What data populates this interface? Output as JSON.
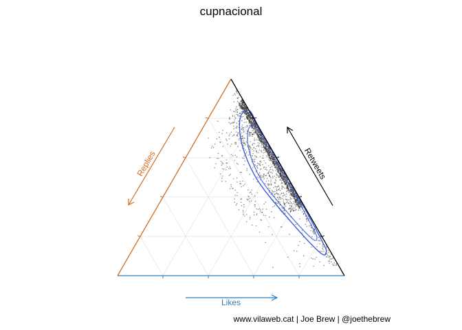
{
  "chart_data": {
    "type": "scatter",
    "subtype": "ternary",
    "title": "cupnacional",
    "axes": {
      "bottom": {
        "label": "Likes",
        "color": "#2b7bba",
        "direction": "left-to-right"
      },
      "left": {
        "label": "Replies",
        "color": "#d36a1c",
        "direction": "top-to-bottom"
      },
      "right": {
        "label": "Retweets",
        "color": "#000000",
        "direction": "bottom-to-top"
      }
    },
    "scale": [
      0,
      1
    ],
    "grid": true,
    "point_color": "#333333",
    "point_density": "very dense along Replies ≈ 0 edge, concentrated at Retweets 0.4–0.9",
    "contour": {
      "color": "#3b5bdb",
      "levels": 2,
      "points": [
        {
          "likes": 0.14,
          "replies": 0.06,
          "retweets": 0.8
        },
        {
          "likes": 0.16,
          "replies": 0.0,
          "retweets": 0.84
        },
        {
          "likes": 0.25,
          "replies": 0.0,
          "retweets": 0.75
        },
        {
          "likes": 0.5,
          "replies": 0.0,
          "retweets": 0.5
        },
        {
          "likes": 0.8,
          "replies": 0.01,
          "retweets": 0.19
        },
        {
          "likes": 0.86,
          "replies": 0.02,
          "retweets": 0.12
        },
        {
          "likes": 0.83,
          "replies": 0.05,
          "retweets": 0.12
        },
        {
          "likes": 0.62,
          "replies": 0.1,
          "retweets": 0.28
        },
        {
          "likes": 0.38,
          "replies": 0.14,
          "retweets": 0.48
        },
        {
          "likes": 0.22,
          "replies": 0.12,
          "retweets": 0.66
        }
      ]
    }
  },
  "caption": "www.vilaweb.cat | Joe Brew | @joethebrew"
}
